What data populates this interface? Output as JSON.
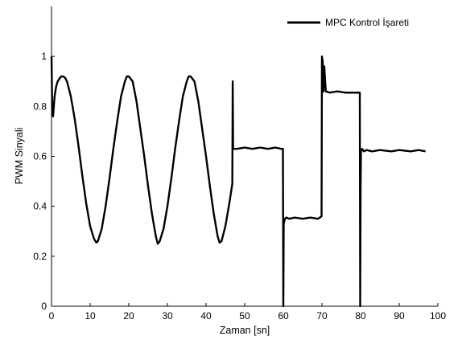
{
  "chart_data": {
    "type": "line",
    "xlabel": "Zaman [sn]",
    "ylabel": "PWM Sinyali",
    "xlim": [
      0,
      100
    ],
    "ylim": [
      0,
      1.2
    ],
    "xticks": [
      "0",
      "10",
      "20",
      "30",
      "40",
      "50",
      "60",
      "70",
      "80",
      "90",
      "100"
    ],
    "yticks": [
      "0",
      "0.2",
      "0.4",
      "0.6",
      "0.8",
      "1"
    ],
    "grid": false,
    "legend_position": "top-right",
    "series": [
      {
        "name": "MPC Kontrol İşareti",
        "color": "#000000",
        "x": [
          0,
          0.2,
          0.4,
          0.6,
          0.8,
          1.2,
          1.6,
          2.0,
          2.5,
          3.0,
          3.5,
          4.0,
          5.0,
          6.0,
          7.0,
          8.0,
          9.0,
          10.0,
          11.0,
          11.6,
          12.0,
          13.0,
          14.0,
          15.0,
          16.0,
          17.0,
          18.0,
          19.0,
          19.5,
          20.0,
          21.0,
          22.0,
          23.0,
          24.0,
          25.0,
          26.0,
          27.0,
          27.5,
          28.0,
          29.0,
          30.0,
          31.0,
          32.0,
          33.0,
          34.0,
          35.0,
          35.5,
          36.0,
          37.0,
          38.0,
          39.0,
          40.0,
          41.0,
          42.0,
          43.0,
          43.5,
          44.0,
          45.0,
          46.0,
          46.8,
          46.9,
          47.0,
          47.3,
          48.0,
          50.0,
          52.0,
          54.0,
          56.0,
          58.0,
          59.5,
          59.9,
          60.0,
          60.1,
          60.4,
          60.8,
          61.5,
          63.0,
          65.0,
          67.0,
          69.0,
          69.9,
          70.0,
          70.2,
          70.4,
          70.6,
          71.0,
          72.0,
          74.0,
          76.0,
          78.0,
          79.8,
          79.9,
          80.0,
          80.1,
          80.4,
          80.8,
          81.5,
          83.0,
          85.0,
          88.0,
          90.0,
          93.0,
          95.0,
          96.8
        ],
        "y": [
          1.0,
          0.78,
          0.76,
          0.8,
          0.84,
          0.88,
          0.9,
          0.91,
          0.92,
          0.92,
          0.915,
          0.9,
          0.84,
          0.75,
          0.64,
          0.52,
          0.41,
          0.32,
          0.27,
          0.255,
          0.26,
          0.31,
          0.4,
          0.51,
          0.63,
          0.74,
          0.84,
          0.9,
          0.92,
          0.92,
          0.9,
          0.82,
          0.71,
          0.6,
          0.48,
          0.37,
          0.28,
          0.25,
          0.26,
          0.31,
          0.4,
          0.51,
          0.63,
          0.74,
          0.84,
          0.9,
          0.92,
          0.92,
          0.9,
          0.82,
          0.71,
          0.6,
          0.48,
          0.37,
          0.28,
          0.255,
          0.26,
          0.32,
          0.41,
          0.49,
          0.9,
          0.63,
          0.63,
          0.63,
          0.635,
          0.63,
          0.635,
          0.63,
          0.635,
          0.63,
          0.63,
          0.0,
          0.33,
          0.35,
          0.355,
          0.35,
          0.355,
          0.35,
          0.355,
          0.35,
          0.36,
          1.0,
          0.98,
          0.86,
          0.96,
          0.86,
          0.855,
          0.86,
          0.855,
          0.855,
          0.855,
          0.0,
          0.47,
          0.62,
          0.63,
          0.62,
          0.625,
          0.62,
          0.625,
          0.62,
          0.625,
          0.62,
          0.625,
          0.62
        ]
      }
    ]
  }
}
